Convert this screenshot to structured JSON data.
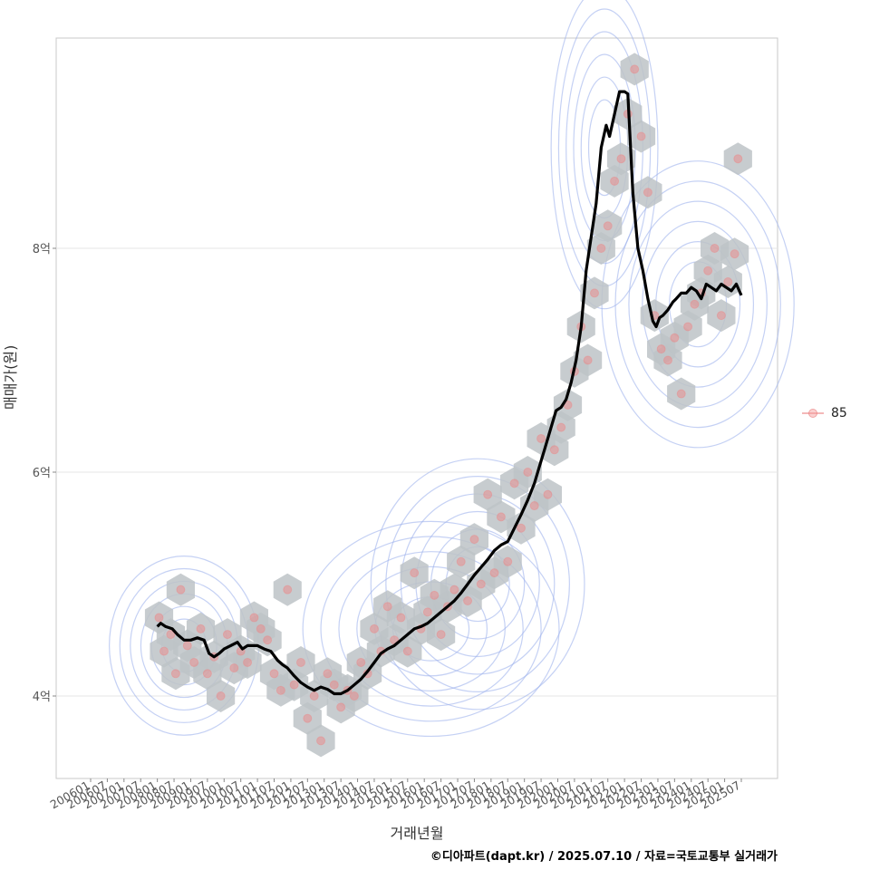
{
  "chart_data": {
    "type": "scatter",
    "xlabel": "거래년월",
    "ylabel": "매매가(원)",
    "caption": "©디아파트(dapt.kr) / 2025.07.10 / 자료=국토교통부 실거래가",
    "legend": {
      "position": "right",
      "label": "85"
    },
    "ylim": [
      3.3,
      10.0
    ],
    "y_ticks": [
      {
        "value": 4,
        "label": "4억"
      },
      {
        "value": 6,
        "label": "6억"
      },
      {
        "value": 8,
        "label": "8억"
      }
    ],
    "x_ticks": [
      "200601",
      "200607",
      "200701",
      "200707",
      "200801",
      "200807",
      "200901",
      "200907",
      "201001",
      "201007",
      "201101",
      "201107",
      "201201",
      "201207",
      "201301",
      "201307",
      "201401",
      "201407",
      "201501",
      "201507",
      "201601",
      "201607",
      "201701",
      "201707",
      "201801",
      "201807",
      "201901",
      "201907",
      "202001",
      "202007",
      "202101",
      "202107",
      "202201",
      "202207",
      "202301",
      "202307",
      "202401",
      "202407",
      "202501",
      "202507"
    ],
    "grid": true,
    "colors": {
      "trend": "#000000",
      "points": "#f08080",
      "hex": "#bdc3c7",
      "contour": "#9fb3ec"
    },
    "series": [
      {
        "kind": "line",
        "x": [
          2008.0,
          2008.1,
          2008.25,
          2008.45,
          2008.6,
          2008.8,
          2009.0,
          2009.2,
          2009.4,
          2009.55,
          2009.7,
          2009.85,
          2010.0,
          2010.2,
          2010.4,
          2010.55,
          2010.7,
          2010.85,
          2011.0,
          2011.2,
          2011.4,
          2011.6,
          2011.75,
          2011.9,
          2012.1,
          2012.3,
          2012.5,
          2012.7,
          2012.9,
          2013.1,
          2013.3,
          2013.5,
          2013.7,
          2013.9,
          2014.1,
          2014.3,
          2014.5,
          2014.7,
          2014.9,
          2015.1,
          2015.3,
          2015.5,
          2015.7,
          2015.9,
          2016.1,
          2016.3,
          2016.5,
          2016.7,
          2016.9,
          2017.1,
          2017.3,
          2017.5,
          2017.7,
          2017.9,
          2018.1,
          2018.3,
          2018.5,
          2018.7,
          2018.9,
          2019.1,
          2019.3,
          2019.45,
          2019.6,
          2019.8,
          2019.95,
          2020.1,
          2020.25,
          2020.4,
          2020.55,
          2020.7,
          2020.85,
          2021.0,
          2021.15,
          2021.3,
          2021.45,
          2021.55,
          2021.7,
          2021.85,
          2022.0,
          2022.1,
          2022.25,
          2022.4,
          2022.55,
          2022.7,
          2022.85,
          2022.95,
          2023.05,
          2023.15,
          2023.3,
          2023.45,
          2023.55,
          2023.7,
          2023.85,
          2024.0,
          2024.15,
          2024.3,
          2024.45,
          2024.6,
          2024.75,
          2024.9,
          2025.05,
          2025.2,
          2025.35,
          2025.5
        ],
        "y": [
          4.62,
          4.65,
          4.62,
          4.6,
          4.55,
          4.5,
          4.5,
          4.52,
          4.5,
          4.38,
          4.35,
          4.38,
          4.42,
          4.45,
          4.48,
          4.42,
          4.45,
          4.45,
          4.45,
          4.42,
          4.4,
          4.32,
          4.28,
          4.25,
          4.18,
          4.12,
          4.08,
          4.05,
          4.08,
          4.06,
          4.02,
          4.02,
          4.05,
          4.1,
          4.15,
          4.22,
          4.3,
          4.38,
          4.42,
          4.45,
          4.5,
          4.55,
          4.6,
          4.62,
          4.65,
          4.7,
          4.75,
          4.8,
          4.85,
          4.92,
          5.0,
          5.08,
          5.15,
          5.22,
          5.3,
          5.35,
          5.38,
          5.5,
          5.62,
          5.75,
          5.9,
          6.05,
          6.2,
          6.4,
          6.55,
          6.58,
          6.65,
          6.8,
          7.0,
          7.3,
          7.8,
          8.1,
          8.4,
          8.9,
          9.1,
          9.0,
          9.2,
          9.4,
          9.4,
          9.38,
          8.5,
          8.0,
          7.8,
          7.55,
          7.35,
          7.3,
          7.38,
          7.4,
          7.45,
          7.52,
          7.55,
          7.6,
          7.6,
          7.65,
          7.62,
          7.55,
          7.68,
          7.65,
          7.62,
          7.68,
          7.65,
          7.62,
          7.68,
          7.58
        ]
      },
      {
        "kind": "points",
        "x": [
          2008.05,
          2008.2,
          2008.4,
          2008.55,
          2008.7,
          2008.9,
          2009.1,
          2009.3,
          2009.5,
          2009.7,
          2009.9,
          2010.1,
          2010.3,
          2010.5,
          2010.7,
          2010.9,
          2011.1,
          2011.3,
          2011.5,
          2011.7,
          2011.9,
          2012.1,
          2012.3,
          2012.5,
          2012.7,
          2012.9,
          2013.1,
          2013.3,
          2013.5,
          2013.7,
          2013.9,
          2014.1,
          2014.3,
          2014.5,
          2014.7,
          2014.9,
          2015.1,
          2015.3,
          2015.5,
          2015.7,
          2015.9,
          2016.1,
          2016.3,
          2016.5,
          2016.7,
          2016.9,
          2017.1,
          2017.3,
          2017.5,
          2017.7,
          2017.9,
          2018.1,
          2018.3,
          2018.5,
          2018.7,
          2018.9,
          2019.1,
          2019.3,
          2019.5,
          2019.7,
          2019.9,
          2020.1,
          2020.3,
          2020.5,
          2020.7,
          2020.9,
          2021.1,
          2021.3,
          2021.5,
          2021.7,
          2021.9,
          2022.1,
          2022.3,
          2022.5,
          2022.7,
          2022.9,
          2023.1,
          2023.3,
          2023.5,
          2023.7,
          2023.9,
          2024.1,
          2024.3,
          2024.5,
          2024.7,
          2024.9,
          2025.1,
          2025.3,
          2025.4
        ],
        "y": [
          4.7,
          4.4,
          4.55,
          4.2,
          4.95,
          4.45,
          4.3,
          4.6,
          4.2,
          4.35,
          4.0,
          4.55,
          4.25,
          4.4,
          4.3,
          4.7,
          4.6,
          4.5,
          4.2,
          4.05,
          4.95,
          4.1,
          4.3,
          3.8,
          4.0,
          3.6,
          4.2,
          4.1,
          3.9,
          4.05,
          4.0,
          4.3,
          4.2,
          4.6,
          4.4,
          4.8,
          4.5,
          4.7,
          4.4,
          5.1,
          4.6,
          4.75,
          4.9,
          4.55,
          4.8,
          4.95,
          5.2,
          4.85,
          5.4,
          5.0,
          5.8,
          5.1,
          5.6,
          5.2,
          5.9,
          5.5,
          6.0,
          5.7,
          6.3,
          5.8,
          6.2,
          6.4,
          6.6,
          6.9,
          7.3,
          7.0,
          7.6,
          8.0,
          8.2,
          8.6,
          8.8,
          9.2,
          9.6,
          9.0,
          8.5,
          7.4,
          7.1,
          7.0,
          7.2,
          6.7,
          7.3,
          7.5,
          7.6,
          7.8,
          8.0,
          7.4,
          7.7,
          7.95,
          8.8
        ]
      }
    ]
  }
}
